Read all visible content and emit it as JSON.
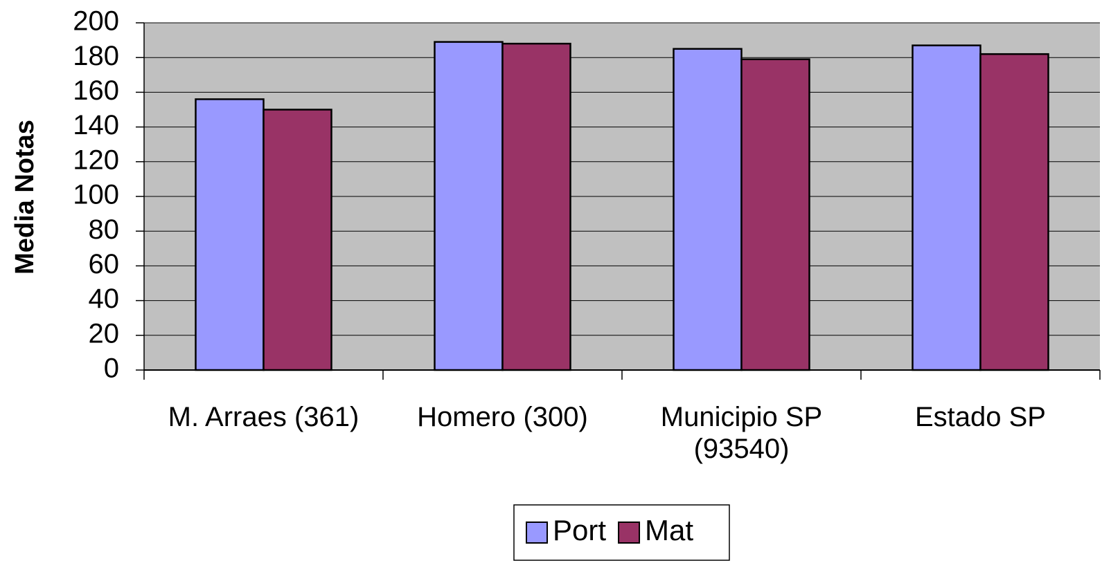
{
  "chart_data": {
    "type": "bar",
    "y_label": "Media Notas",
    "categories": [
      "M. Arraes (361)",
      "Homero (300)",
      "Municipio SP (93540)",
      "Estado SP"
    ],
    "series": [
      {
        "name": "Port",
        "color": "#9999ff",
        "values": [
          156,
          189,
          185,
          187
        ]
      },
      {
        "name": "Mat",
        "color": "#993366",
        "values": [
          150,
          188,
          179,
          182
        ]
      }
    ],
    "ylim": [
      0,
      200
    ],
    "yticks": [
      0,
      20,
      40,
      60,
      80,
      100,
      120,
      140,
      160,
      180,
      200
    ],
    "grid": true,
    "plot_background": "#c0c0c0",
    "legend": "bottom"
  }
}
